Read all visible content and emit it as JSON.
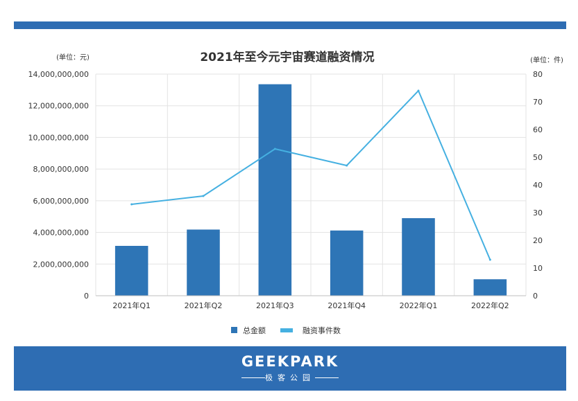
{
  "chart_data": {
    "type": "bar",
    "title": "2021年至今元宇宙赛道融资情况",
    "ylabel_left": "(单位：元)",
    "ylabel_right": "(单位：件)",
    "categories": [
      "2021年Q1",
      "2021年Q2",
      "2021年Q3",
      "2021年Q4",
      "2022年Q1",
      "2022年Q2"
    ],
    "series": [
      {
        "name": "总金额",
        "type": "bar",
        "axis": "left",
        "values": [
          3150000000,
          4180000000,
          13360000000,
          4120000000,
          4900000000,
          1040000000
        ]
      },
      {
        "name": "融资事件数",
        "type": "line",
        "axis": "right",
        "values": [
          33,
          36,
          53,
          47,
          74,
          13
        ]
      }
    ],
    "ylim_left": [
      0,
      14000000000
    ],
    "ylim_right": [
      0,
      80
    ],
    "yticks_left": [
      "0",
      "2,000,000,000",
      "4,000,000,000",
      "6,000,000,000",
      "8,000,000,000",
      "10,000,000,000",
      "12,000,000,000",
      "14,000,000,000"
    ],
    "yticks_right": [
      "0",
      "10",
      "20",
      "30",
      "40",
      "50",
      "60",
      "70",
      "80"
    ],
    "grid": true,
    "legend_position": "bottom",
    "colors": {
      "bar": "#2e75b6",
      "line": "#45b0e1"
    }
  },
  "footer": {
    "brand": "GEEKPARK",
    "brand_sub": "极客公园"
  },
  "colors": {
    "brand": "#2e6db3"
  }
}
